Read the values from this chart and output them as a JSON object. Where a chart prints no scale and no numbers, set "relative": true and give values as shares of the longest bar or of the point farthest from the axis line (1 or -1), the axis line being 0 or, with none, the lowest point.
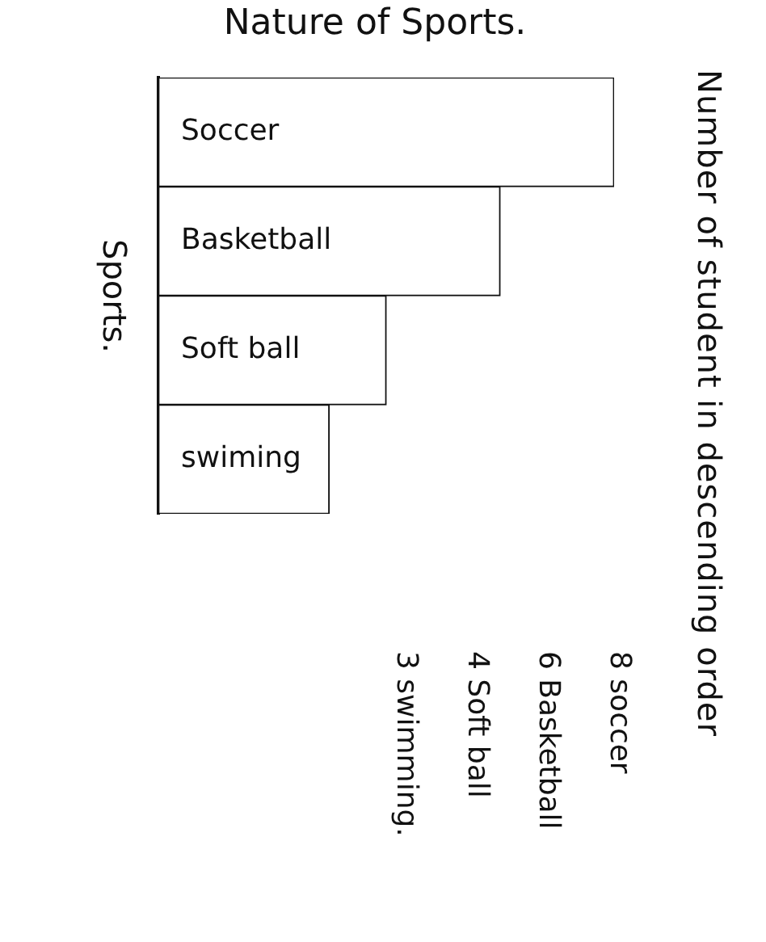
{
  "chart_data": {
    "type": "bar",
    "orientation": "horizontal",
    "relative": true,
    "title": "Nature of Sports.",
    "ylabel": "Sports.",
    "categories": [
      "Soccer",
      "Basketball",
      "Soft ball",
      "swiming"
    ],
    "values": [
      1,
      0.75,
      0.5,
      0.375
    ],
    "color": "#ffffff",
    "tick_labels": "y",
    "annotations": [
      "Number of student in descending order",
      "8 soccer",
      "6 Basketball",
      "4 Soft ball",
      "3 swimming."
    ]
  }
}
